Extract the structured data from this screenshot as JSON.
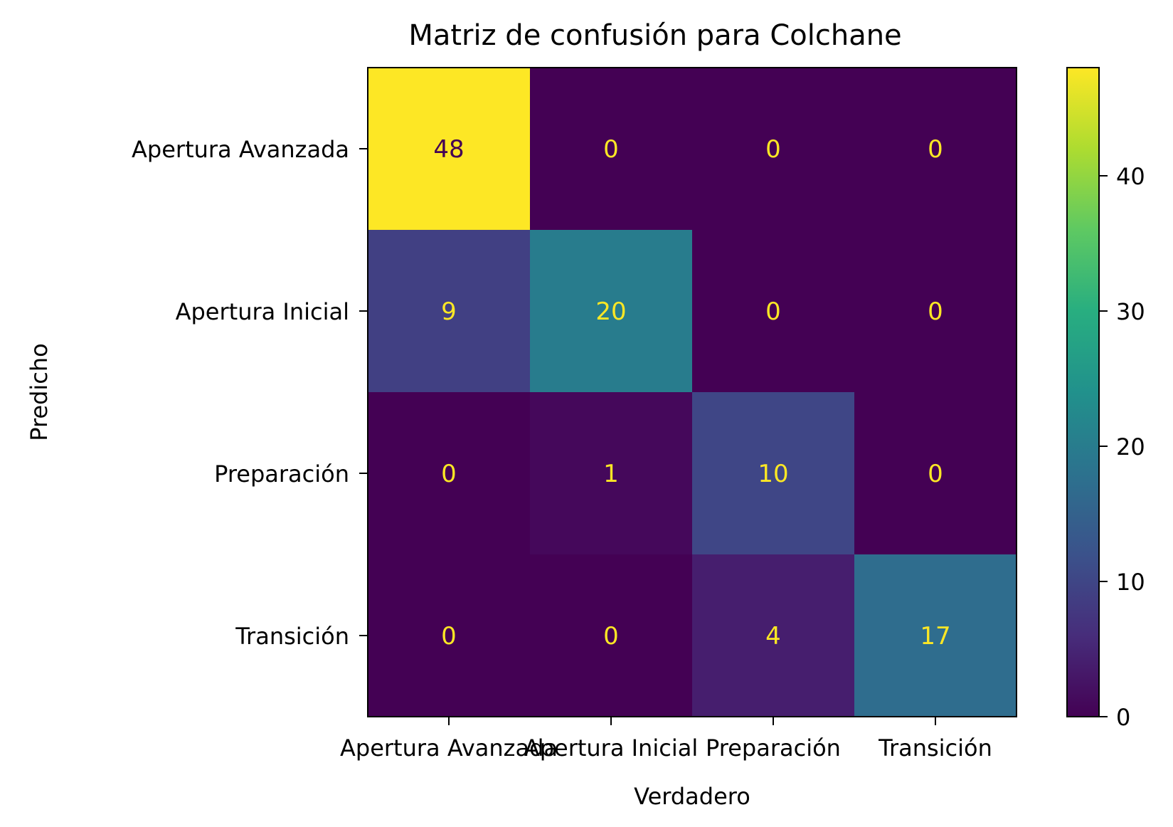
{
  "chart_data": {
    "type": "heatmap",
    "title": "Matriz de confusión para Colchane",
    "xlabel": "Verdadero",
    "ylabel": "Predicho",
    "x_categories": [
      "Apertura Avanzada",
      "Apertura Inicial",
      "Preparación",
      "Transición"
    ],
    "y_categories": [
      "Apertura Avanzada",
      "Apertura Inicial",
      "Preparación",
      "Transición"
    ],
    "matrix": [
      [
        48,
        0,
        0,
        0
      ],
      [
        9,
        20,
        0,
        0
      ],
      [
        0,
        1,
        10,
        0
      ],
      [
        0,
        0,
        4,
        17
      ]
    ],
    "colorbar": {
      "range": [
        0,
        48
      ],
      "ticks": [
        0,
        10,
        20,
        30,
        40
      ],
      "colormap": "viridis"
    },
    "annotation_colors": {
      "on_dark": "#fde725",
      "on_light": "#440154"
    }
  }
}
